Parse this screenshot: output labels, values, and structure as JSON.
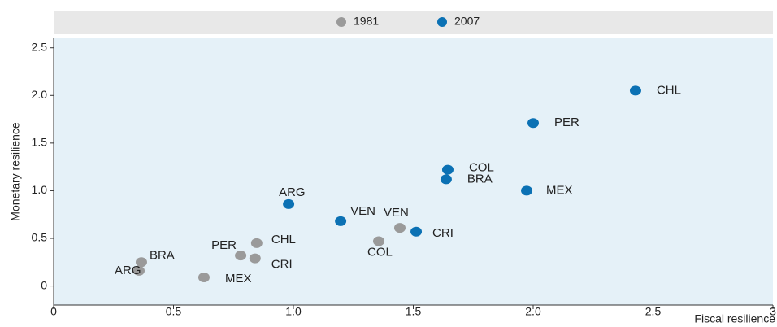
{
  "chart_data": {
    "type": "scatter",
    "x_label": "Fiscal resilience",
    "y_label": "Monetary resilience",
    "xlim": [
      0,
      3
    ],
    "ylim": [
      -0.2,
      2.6
    ],
    "xticks": [
      0,
      0.5,
      {
        "value": 1,
        "label": "1.0"
      },
      1.5,
      {
        "value": 2,
        "label": "2.0"
      },
      2.5,
      3
    ],
    "yticks": [
      0,
      0.5,
      {
        "value": 1,
        "label": "1.0"
      },
      1.5,
      {
        "value": 2,
        "label": "2.0"
      },
      2.5
    ],
    "grid": false,
    "legend": "top",
    "series": [
      {
        "name": "1981",
        "color": "#9a9a9a",
        "labels": [
          "BRA",
          "ARG",
          "MEX",
          "PER",
          "CHL",
          "CRI",
          "COL",
          "VEN"
        ],
        "x": [
          0.366,
          0.356,
          0.627,
          0.78,
          0.847,
          0.84,
          1.356,
          1.444
        ],
        "values": [
          0.25,
          0.16,
          0.09,
          0.32,
          0.45,
          0.29,
          0.47,
          0.61
        ]
      },
      {
        "name": "2007",
        "color": "#0b71b4",
        "labels": [
          "ARG",
          "VEN",
          "CRI",
          "COL",
          "BRA",
          "MEX",
          "PER",
          "CHL"
        ],
        "x": [
          0.98,
          1.197,
          1.512,
          1.644,
          1.637,
          1.973,
          2.0,
          2.427
        ],
        "values": [
          0.86,
          0.68,
          0.57,
          1.22,
          1.12,
          1.0,
          1.71,
          2.05
        ]
      }
    ]
  }
}
